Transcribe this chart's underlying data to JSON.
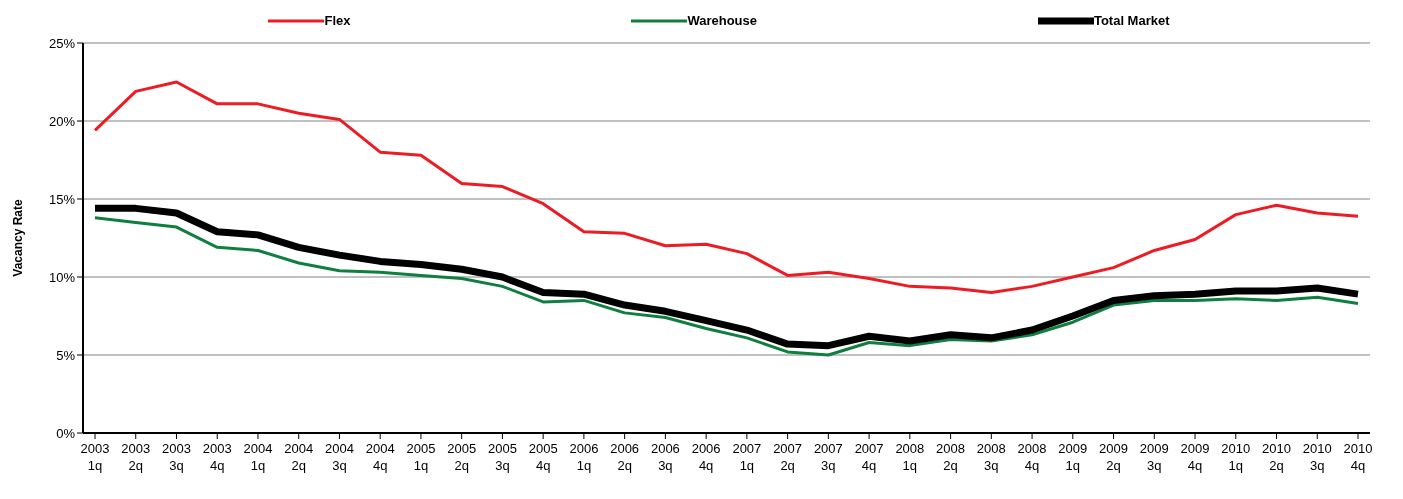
{
  "chart_data": {
    "type": "line",
    "ylabel": "Vacancy Rate",
    "categories": [
      "2003 1q",
      "2003 2q",
      "2003 3q",
      "2003 4q",
      "2004 1q",
      "2004 2q",
      "2004 3q",
      "2004 4q",
      "2005 1q",
      "2005 2q",
      "2005 3q",
      "2005 4q",
      "2006 1q",
      "2006 2q",
      "2006 3q",
      "2006 4q",
      "2007 1q",
      "2007 2q",
      "2007 3q",
      "2007 4q",
      "2008 1q",
      "2008 2q",
      "2008 3q",
      "2008 4q",
      "2009 1q",
      "2009 2q",
      "2009 3q",
      "2009 4q",
      "2010 1q",
      "2010 2q",
      "2010 3q",
      "2010 4q"
    ],
    "series": [
      {
        "name": "Flex",
        "color": "#ed1c24",
        "values": [
          19.4,
          21.9,
          22.5,
          21.1,
          21.1,
          20.5,
          20.1,
          18.0,
          17.8,
          16.0,
          15.8,
          14.7,
          12.9,
          12.8,
          12.0,
          12.1,
          11.5,
          10.1,
          10.3,
          9.9,
          9.4,
          9.3,
          9.0,
          9.4,
          10.0,
          10.6,
          11.7,
          12.4,
          14.0,
          14.6,
          14.1,
          13.9
        ]
      },
      {
        "name": "Warehouse",
        "color": "#0e7f3f",
        "values": [
          13.8,
          13.5,
          13.2,
          11.9,
          11.7,
          10.9,
          10.4,
          10.3,
          10.1,
          9.9,
          9.4,
          8.4,
          8.5,
          7.7,
          7.4,
          6.7,
          6.1,
          5.2,
          5.0,
          5.8,
          5.6,
          6.0,
          5.9,
          6.3,
          7.1,
          8.2,
          8.5,
          8.5,
          8.6,
          8.5,
          8.7,
          8.3
        ]
      },
      {
        "name": "Total Market",
        "color": "#000000",
        "values": [
          14.4,
          14.4,
          14.1,
          12.9,
          12.7,
          11.9,
          11.4,
          11.0,
          10.8,
          10.5,
          10.0,
          9.0,
          8.9,
          8.2,
          7.8,
          7.2,
          6.6,
          5.7,
          5.6,
          6.2,
          5.9,
          6.3,
          6.1,
          6.6,
          7.5,
          8.5,
          8.8,
          8.9,
          9.1,
          9.1,
          9.3,
          8.9
        ]
      }
    ],
    "ylim": [
      0,
      25
    ],
    "yticks": [
      {
        "value": 0,
        "label": "0%"
      },
      {
        "value": 5,
        "label": "5%"
      },
      {
        "value": 10,
        "label": "10%"
      },
      {
        "value": 15,
        "label": "15%"
      },
      {
        "value": 20,
        "label": "20%"
      },
      {
        "value": 25,
        "label": "25%"
      }
    ],
    "grid": "y",
    "legend": "top",
    "marker": "none",
    "line_style": "solid"
  }
}
